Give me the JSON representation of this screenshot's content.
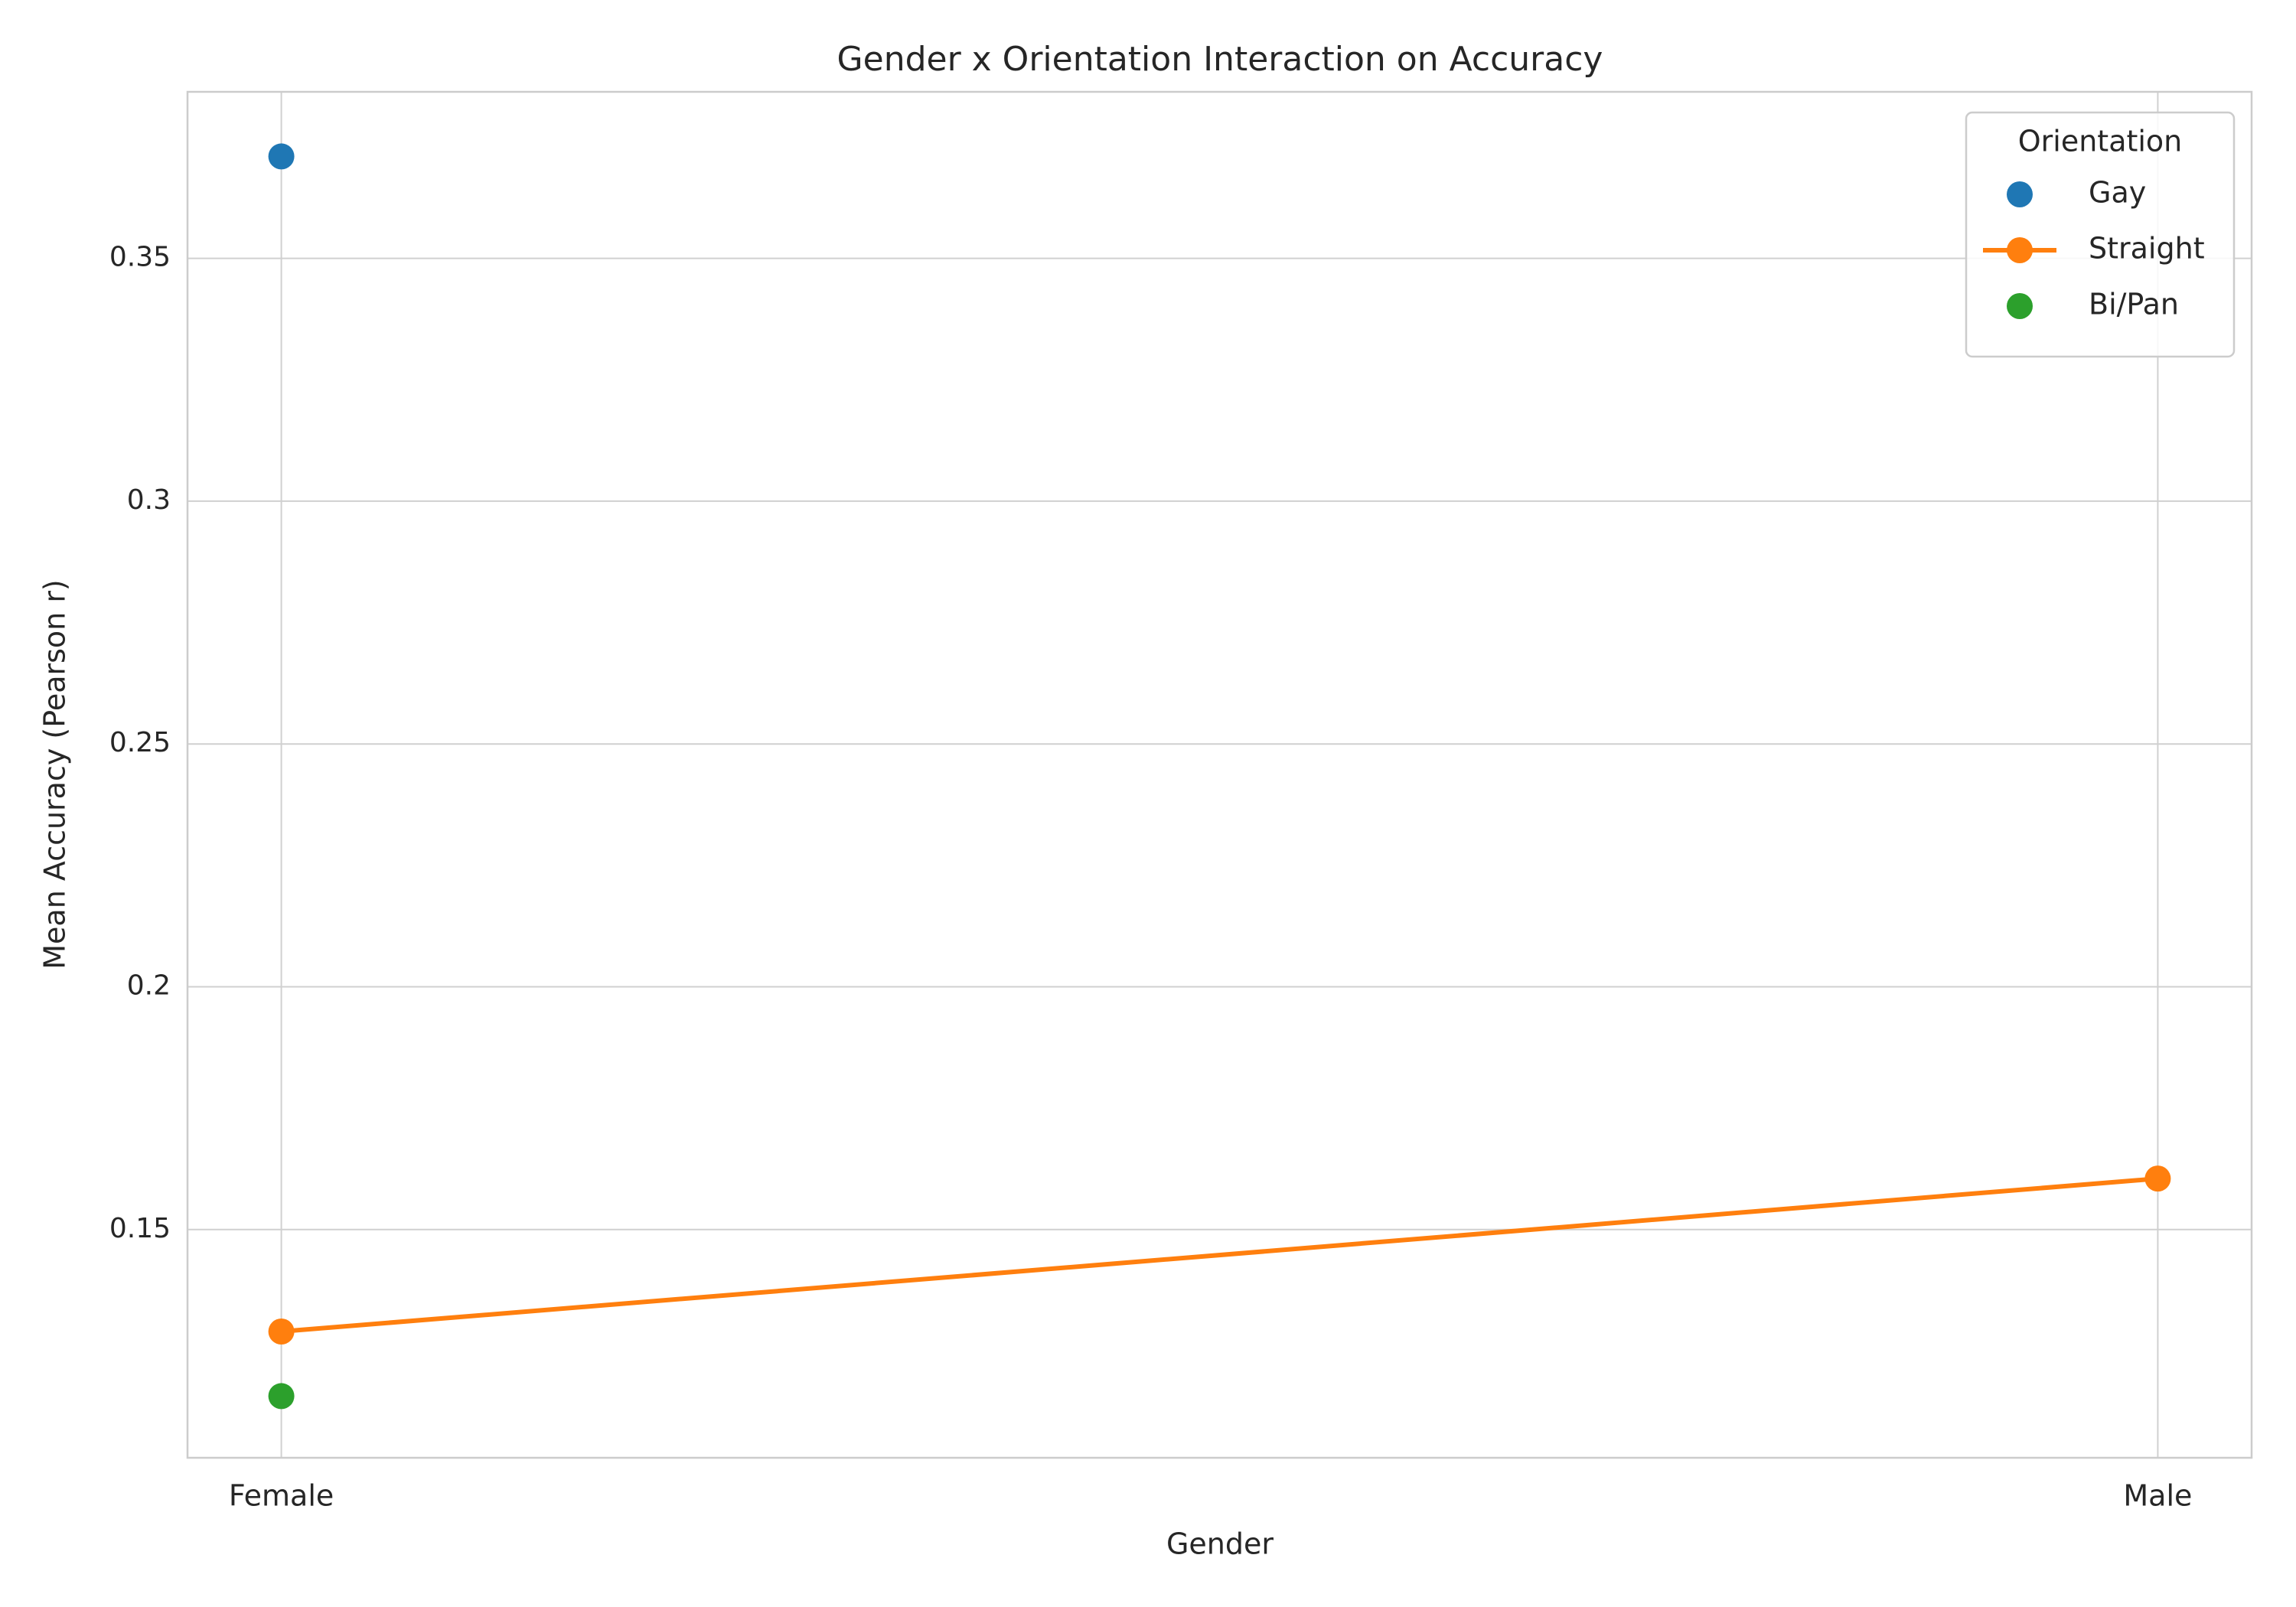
{
  "chart_data": {
    "type": "line",
    "title": "Gender x Orientation Interaction on Accuracy",
    "x_label": "Gender",
    "y_label": "Mean Accuracy (Pearson r)",
    "categories": [
      "Female",
      "Male"
    ],
    "series": [
      {
        "name": "Gay",
        "color": "#1f77b4",
        "values": [
          0.371,
          null
        ]
      },
      {
        "name": "Straight",
        "color": "#ff7f0e",
        "values": [
          0.129,
          0.1605
        ]
      },
      {
        "name": "Bi/Pan",
        "color": "#2ca02c",
        "values": [
          0.1157,
          null
        ]
      }
    ],
    "ylim": [
      0.103,
      0.3843
    ],
    "yticks": [
      0.15,
      0.2,
      0.25,
      0.3,
      0.35
    ],
    "grid": true,
    "legend_title": "Orientation",
    "legend_position": "upper right"
  }
}
